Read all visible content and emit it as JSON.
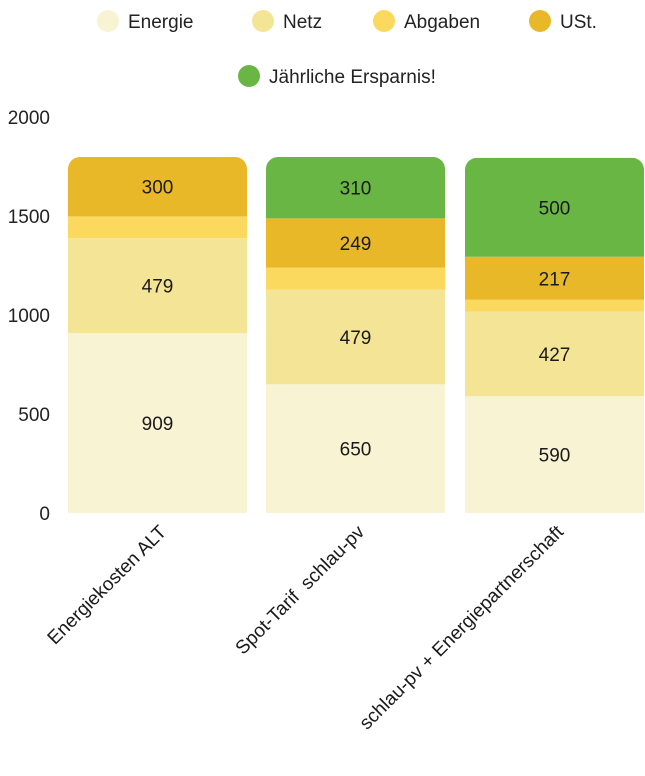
{
  "chart_data": {
    "type": "bar",
    "stacked": true,
    "categories": [
      "Energiekosten ALT",
      "Spot-Tarif  schlau-pv",
      "schlau-pv + Energiepartnerschaft"
    ],
    "series": [
      {
        "name": "Energie",
        "color": "#f7f3d3",
        "values": [
          909,
          650,
          590
        ]
      },
      {
        "name": "Netz",
        "color": "#f4e596",
        "values": [
          479,
          479,
          427
        ]
      },
      {
        "name": "Abgaben",
        "color": "#fbd95e",
        "values": [
          110,
          110,
          60
        ]
      },
      {
        "name": "USt.",
        "color": "#e9b829",
        "values": [
          300,
          249,
          217
        ]
      },
      {
        "name": "Jährliche Ersparnis!",
        "color": "#6ab645",
        "values": [
          0,
          310,
          500
        ]
      }
    ],
    "value_labels": [
      [
        909,
        479,
        null,
        300,
        null
      ],
      [
        650,
        479,
        null,
        249,
        310
      ],
      [
        590,
        427,
        null,
        217,
        500
      ]
    ],
    "yticks": [
      0,
      500,
      1000,
      1500,
      2000
    ],
    "ylim": [
      0,
      2000
    ],
    "legend_position": "top",
    "grid": false
  }
}
